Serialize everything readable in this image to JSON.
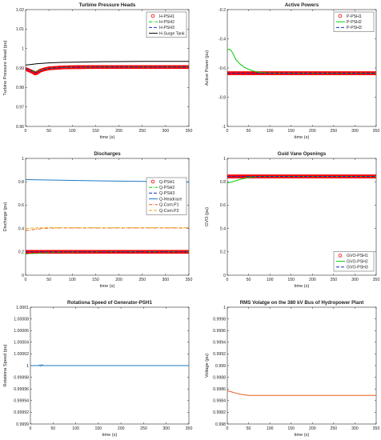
{
  "chart_data": [
    {
      "type": "line",
      "title": "Turbine Pressure Heads",
      "xlabel": "time (s)",
      "ylabel": "Turbine Pressure Head (pu)",
      "xlim": [
        0,
        350
      ],
      "ylim": [
        0.96,
        1.02
      ],
      "xticks": [
        "0",
        "50",
        "100",
        "150",
        "200",
        "250",
        "300",
        "350"
      ],
      "yticks": [
        "0.96",
        "0.97",
        "0.98",
        "0.99",
        "1",
        "1.01",
        "1.02"
      ],
      "legend_position": "top-right",
      "series": [
        {
          "name": "H-PSH1",
          "style": "circles",
          "color": "#ff0000",
          "x": [
            0,
            5,
            10,
            15,
            20,
            25,
            30,
            40,
            50,
            60,
            80,
            100,
            150,
            200,
            250,
            300,
            350
          ],
          "y": [
            0.9895,
            0.989,
            0.9885,
            0.988,
            0.9872,
            0.9875,
            0.9885,
            0.9893,
            0.9898,
            0.99,
            0.9903,
            0.9904,
            0.9905,
            0.9905,
            0.9905,
            0.9905,
            0.9905
          ]
        },
        {
          "name": "H-PSH2",
          "style": "dashdot",
          "color": "#00cc00",
          "x": [
            0,
            10,
            20,
            30,
            40,
            50,
            60,
            80,
            100,
            150,
            200,
            250,
            300,
            350
          ],
          "y": [
            0.9895,
            0.9888,
            0.9885,
            0.9888,
            0.9893,
            0.9898,
            0.99,
            0.9903,
            0.9904,
            0.9905,
            0.9905,
            0.9905,
            0.9905,
            0.9905
          ]
        },
        {
          "name": "H-PSH3",
          "style": "dashed",
          "color": "#1a2fbf",
          "x": [
            0,
            10,
            20,
            30,
            40,
            50,
            60,
            80,
            100,
            150,
            200,
            250,
            300,
            350
          ],
          "y": [
            0.9895,
            0.9888,
            0.9875,
            0.9885,
            0.9893,
            0.9898,
            0.99,
            0.9903,
            0.9904,
            0.9905,
            0.9905,
            0.9905,
            0.9905,
            0.9905
          ]
        },
        {
          "name": "H-Surge Tank",
          "style": "solid",
          "color": "#000000",
          "x": [
            0,
            25,
            50,
            75,
            100,
            150,
            200,
            250,
            300,
            350
          ],
          "y": [
            0.9915,
            0.9922,
            0.9926,
            0.9929,
            0.993,
            0.9932,
            0.9933,
            0.9934,
            0.9934,
            0.9934
          ]
        }
      ]
    },
    {
      "type": "line",
      "title": "Active Powers",
      "xlabel": "time (s)",
      "ylabel": "Active Power (pu)",
      "xlim": [
        0,
        350
      ],
      "ylim": [
        -1.1,
        -0.2
      ],
      "xticks": [
        "0",
        "50",
        "100",
        "150",
        "200",
        "250",
        "300",
        "350"
      ],
      "yticks": [
        "-1",
        "-0.8",
        "-0.6",
        "-0.4",
        "-0.2"
      ],
      "legend_position": "top-right",
      "series": [
        {
          "name": "P-PSH1",
          "style": "circles",
          "color": "#ff0000",
          "x": [
            0,
            50,
            100,
            150,
            200,
            250,
            300,
            350
          ],
          "y": [
            -0.69,
            -0.69,
            -0.69,
            -0.69,
            -0.69,
            -0.69,
            -0.69,
            -0.69
          ]
        },
        {
          "name": "P-PSH2",
          "style": "solid",
          "color": "#00cc00",
          "x": [
            0,
            5,
            10,
            15,
            20,
            30,
            40,
            50,
            60,
            70,
            80,
            90,
            100,
            120,
            150,
            200,
            250,
            300,
            350
          ],
          "y": [
            -0.51,
            -0.505,
            -0.52,
            -0.55,
            -0.585,
            -0.62,
            -0.645,
            -0.66,
            -0.672,
            -0.68,
            -0.685,
            -0.688,
            -0.689,
            -0.69,
            -0.69,
            -0.69,
            -0.69,
            -0.69,
            -0.69
          ]
        },
        {
          "name": "P-PSH3",
          "style": "dashed",
          "color": "#1a2fbf",
          "x": [
            0,
            50,
            100,
            150,
            200,
            250,
            300,
            350
          ],
          "y": [
            -0.69,
            -0.69,
            -0.69,
            -0.69,
            -0.69,
            -0.69,
            -0.69,
            -0.69
          ]
        }
      ]
    },
    {
      "type": "line",
      "title": "Discharges",
      "xlabel": "time (s)",
      "ylabel": "Discharge (pu)",
      "xlim": [
        0,
        350
      ],
      "ylim": [
        0,
        1.1
      ],
      "xticks": [
        "0",
        "50",
        "100",
        "150",
        "200",
        "250",
        "300",
        "350"
      ],
      "yticks": [
        "0",
        "0.2",
        "0.4",
        "0.6",
        "0.8",
        "1"
      ],
      "legend_position": "right",
      "series": [
        {
          "name": "Q-PSH1",
          "style": "circles",
          "color": "#ff0000",
          "x": [
            0,
            50,
            100,
            150,
            200,
            250,
            300,
            350
          ],
          "y": [
            0.22,
            0.22,
            0.22,
            0.22,
            0.22,
            0.22,
            0.22,
            0.22
          ]
        },
        {
          "name": "Q-PSH2",
          "style": "dashdot",
          "color": "#00cc00",
          "x": [
            0,
            20,
            40,
            60,
            100,
            150,
            200,
            250,
            300,
            350
          ],
          "y": [
            0.2,
            0.205,
            0.21,
            0.215,
            0.218,
            0.22,
            0.22,
            0.22,
            0.22,
            0.22
          ]
        },
        {
          "name": "Q-PSH3",
          "style": "dashed",
          "color": "#1a2fbf",
          "x": [
            0,
            50,
            100,
            150,
            200,
            250,
            300,
            350
          ],
          "y": [
            0.22,
            0.22,
            0.22,
            0.22,
            0.22,
            0.22,
            0.22,
            0.22
          ]
        },
        {
          "name": "Q-Headrace",
          "style": "solid",
          "color": "#1f77c4",
          "x": [
            0,
            50,
            100,
            150,
            200,
            250,
            300,
            350
          ],
          "y": [
            0.9,
            0.897,
            0.893,
            0.889,
            0.886,
            0.883,
            0.88,
            0.877
          ]
        },
        {
          "name": "Q-Com.P1",
          "style": "dashdot",
          "color": "#e8601c",
          "x": [
            0,
            10,
            20,
            30,
            40,
            50,
            60,
            80,
            100,
            150,
            200,
            250,
            300,
            350
          ],
          "y": [
            0.42,
            0.425,
            0.432,
            0.437,
            0.441,
            0.443,
            0.444,
            0.445,
            0.445,
            0.445,
            0.445,
            0.445,
            0.445,
            0.445
          ]
        },
        {
          "name": "Q-Com.P2",
          "style": "dashed",
          "color": "#eda81c",
          "x": [
            0,
            10,
            20,
            30,
            40,
            50,
            60,
            80,
            100,
            150,
            200,
            250,
            300,
            350
          ],
          "y": [
            0.44,
            0.443,
            0.445,
            0.446,
            0.447,
            0.447,
            0.447,
            0.447,
            0.447,
            0.447,
            0.447,
            0.447,
            0.447,
            0.447
          ]
        }
      ]
    },
    {
      "type": "line",
      "title": "Guid Vane Openings",
      "xlabel": "time (s)",
      "ylabel": "GVO (pu)",
      "xlim": [
        0,
        350
      ],
      "ylim": [
        0,
        1.1
      ],
      "xticks": [
        "0",
        "50",
        "100",
        "150",
        "200",
        "250",
        "300",
        "350"
      ],
      "yticks": [
        "0",
        "0.2",
        "0.4",
        "0.6",
        "0.8",
        "1"
      ],
      "legend_position": "bottom-right",
      "series": [
        {
          "name": "GVO-PSH1",
          "style": "circles",
          "color": "#ff0000",
          "x": [
            0,
            50,
            100,
            150,
            200,
            250,
            300,
            350
          ],
          "y": [
            0.93,
            0.93,
            0.93,
            0.93,
            0.93,
            0.93,
            0.93,
            0.93
          ]
        },
        {
          "name": "GVO-PSH2",
          "style": "solid",
          "color": "#00cc00",
          "x": [
            0,
            10,
            20,
            30,
            40,
            50,
            60,
            70,
            80,
            100,
            150,
            200,
            250,
            300,
            350
          ],
          "y": [
            0.87,
            0.878,
            0.89,
            0.902,
            0.912,
            0.92,
            0.925,
            0.928,
            0.93,
            0.93,
            0.93,
            0.93,
            0.93,
            0.93,
            0.93
          ]
        },
        {
          "name": "GVO-PSH3",
          "style": "dashed",
          "color": "#1a2fbf",
          "x": [
            0,
            50,
            100,
            150,
            200,
            250,
            300,
            350
          ],
          "y": [
            0.93,
            0.93,
            0.93,
            0.93,
            0.93,
            0.93,
            0.93,
            0.93
          ]
        }
      ]
    },
    {
      "type": "line",
      "title": "Rotationa Speed of Generator-PSH1",
      "xlabel": "time (s)",
      "ylabel": "Rotationa Speed (pu)",
      "xlim": [
        0,
        350
      ],
      "ylim": [
        0.9999,
        1.0001
      ],
      "xticks": [
        "0",
        "50",
        "100",
        "150",
        "200",
        "250",
        "300",
        "350"
      ],
      "yticks": [
        "0.9999",
        "0.99992",
        "0.99994",
        "0.99996",
        "0.99998",
        "1",
        "1.00002",
        "1.00004",
        "1.00006",
        "1.00008",
        "1.0001"
      ],
      "series": [
        {
          "style": "solid",
          "color": "#1f77c4",
          "x": [
            0,
            10,
            15,
            18,
            20,
            22,
            24,
            26,
            28,
            30,
            35,
            50,
            100,
            150,
            200,
            250,
            300,
            350
          ],
          "y": [
            1.0,
            1.0,
            1.0,
            1.0,
            1.000001,
            0.999999,
            1.0000015,
            0.9999995,
            1.000001,
            1.0,
            1.0,
            1.0,
            1.0,
            1.0,
            1.0,
            1.0,
            1.0,
            1.0
          ]
        }
      ]
    },
    {
      "type": "line",
      "title": "RMS Volatge on the 380 kV Bus of Hydropower Plant",
      "xlabel": "time (s)",
      "ylabel": "Voltage (pu)",
      "xlim": [
        0,
        350
      ],
      "ylim": [
        0.998,
        1.0
      ],
      "xticks": [
        "0",
        "50",
        "100",
        "150",
        "200",
        "250",
        "300",
        "350"
      ],
      "yticks": [
        "0.998",
        "0.9982",
        "0.9984",
        "0.9986",
        "0.9988",
        "0.999",
        "0.9992",
        "0.9994",
        "0.9996",
        "0.9998",
        "1"
      ],
      "series": [
        {
          "style": "solid",
          "color": "#e8601c",
          "x": [
            0,
            10,
            20,
            30,
            40,
            50,
            60,
            80,
            100,
            150,
            200,
            250,
            300,
            350
          ],
          "y": [
            0.99857,
            0.99855,
            0.99853,
            0.99851,
            0.9985,
            0.99849,
            0.99849,
            0.99849,
            0.99849,
            0.99849,
            0.99849,
            0.99849,
            0.99849,
            0.99849
          ]
        }
      ]
    }
  ]
}
